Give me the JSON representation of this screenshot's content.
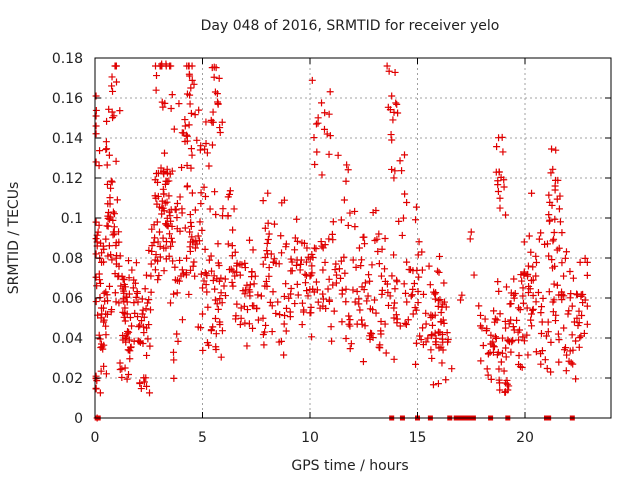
{
  "chart_data": {
    "type": "scatter",
    "title": "Day 048 of 2016, SRMTID for receiver yelo",
    "xlabel": "GPS time / hours",
    "ylabel": "SRMTID / TECUs",
    "xlim": [
      0,
      24
    ],
    "ylim": [
      0,
      0.18
    ],
    "grid": true,
    "marker": "plus",
    "series_color": "#e00000",
    "xticks": [
      0,
      5,
      10,
      15,
      20
    ],
    "xtick_labels": [
      "0",
      "5",
      "10",
      "15",
      "20"
    ],
    "yticks": [
      0,
      0.02,
      0.04,
      0.06,
      0.08,
      0.1,
      0.12,
      0.14,
      0.16,
      0.18
    ],
    "ytick_labels": [
      "0",
      "0.02",
      "0.04",
      "0.06",
      "0.08",
      "0.1",
      "0.12",
      "0.14",
      "0.16",
      "0.18"
    ],
    "series": [
      {
        "name": "SRMTID",
        "x": [
          0.05,
          0.1,
          0.2,
          0.3,
          0.4,
          0.5,
          0.6,
          0.7,
          0.8,
          0.9,
          1.0,
          1.1,
          1.2,
          1.3,
          1.4,
          1.5,
          1.6,
          1.8,
          2.0,
          2.2,
          2.4,
          2.6,
          2.8,
          3.0,
          3.1,
          3.2,
          3.3,
          3.4,
          3.6,
          3.8,
          4.0,
          4.2,
          4.3,
          4.4,
          4.6,
          4.8,
          5.0,
          5.2,
          5.4,
          5.6,
          5.8,
          6.0,
          6.2,
          6.5,
          6.8,
          7.0,
          7.3,
          7.6,
          7.9,
          8.2,
          8.5,
          8.8,
          9.1,
          9.4,
          9.7,
          10.0,
          10.3,
          10.6,
          10.9,
          11.2,
          11.5,
          11.8,
          12.1,
          12.4,
          12.7,
          13.0,
          13.3,
          13.6,
          13.9,
          14.2,
          14.5,
          14.8,
          15.1,
          15.4,
          15.7,
          16.0,
          16.2,
          16.4,
          17.0,
          17.5,
          18.0,
          18.3,
          18.5,
          18.7,
          18.9,
          19.1,
          19.3,
          19.5,
          19.7,
          19.9,
          20.1,
          20.3,
          20.5,
          20.8,
          21.0,
          21.3,
          21.5,
          21.7,
          22.0,
          22.3,
          22.6,
          22.8,
          0.3,
          0.8,
          1.0,
          1.5,
          2.3,
          2.9,
          3.2,
          3.5,
          4.2,
          4.4,
          4.9,
          5.3,
          5.7,
          6.4,
          7.2,
          8.1,
          8.9,
          9.6,
          10.2,
          10.8,
          11.6,
          12.3,
          13.2,
          13.8,
          14.4,
          15.2,
          15.8,
          16.1,
          18.8,
          19.2,
          20.2,
          21.1,
          21.4,
          21.8,
          22.4,
          0.1,
          3.1,
          3.3,
          4.3,
          5.6,
          10.3,
          13.8,
          18.8,
          21.4
        ],
        "y": [
          0.146,
          0.088,
          0.072,
          0.055,
          0.048,
          0.063,
          0.081,
          0.107,
          0.118,
          0.092,
          0.077,
          0.071,
          0.066,
          0.039,
          0.025,
          0.058,
          0.062,
          0.069,
          0.058,
          0.052,
          0.045,
          0.071,
          0.079,
          0.093,
          0.102,
          0.112,
          0.085,
          0.096,
          0.088,
          0.042,
          0.071,
          0.095,
          0.116,
          0.093,
          0.078,
          0.091,
          0.052,
          0.063,
          0.081,
          0.059,
          0.048,
          0.066,
          0.087,
          0.071,
          0.055,
          0.064,
          0.073,
          0.049,
          0.066,
          0.082,
          0.058,
          0.047,
          0.062,
          0.079,
          0.053,
          0.071,
          0.068,
          0.074,
          0.059,
          0.077,
          0.062,
          0.051,
          0.058,
          0.049,
          0.061,
          0.059,
          0.042,
          0.067,
          0.055,
          0.046,
          0.058,
          0.052,
          0.041,
          0.047,
          0.051,
          0.035,
          0.049,
          0.038,
          0.059,
          0.093,
          0.045,
          0.032,
          0.038,
          0.049,
          0.028,
          0.035,
          0.057,
          0.044,
          0.039,
          0.061,
          0.055,
          0.052,
          0.071,
          0.048,
          0.041,
          0.058,
          0.084,
          0.063,
          0.052,
          0.048,
          0.041,
          0.059,
          0.037,
          0.153,
          0.168,
          0.052,
          0.018,
          0.098,
          0.112,
          0.122,
          0.146,
          0.171,
          0.134,
          0.126,
          0.158,
          0.094,
          0.063,
          0.092,
          0.087,
          0.079,
          0.063,
          0.142,
          0.109,
          0.085,
          0.092,
          0.161,
          0.112,
          0.083,
          0.062,
          0.048,
          0.123,
          0.014,
          0.091,
          0.081,
          0.116,
          0.045,
          0.062,
          0,
          0.177,
          0.177,
          0.162,
          0.163,
          0.147,
          0.139,
          0.123,
          0.114
        ],
        "zero_x": [
          0.1,
          0.15,
          13.8,
          14.3,
          15.0,
          15.6,
          16.5,
          16.8,
          17.0,
          17.2,
          17.4,
          17.6,
          18.4,
          19.2,
          21.0,
          21.1,
          22.2
        ]
      }
    ]
  }
}
